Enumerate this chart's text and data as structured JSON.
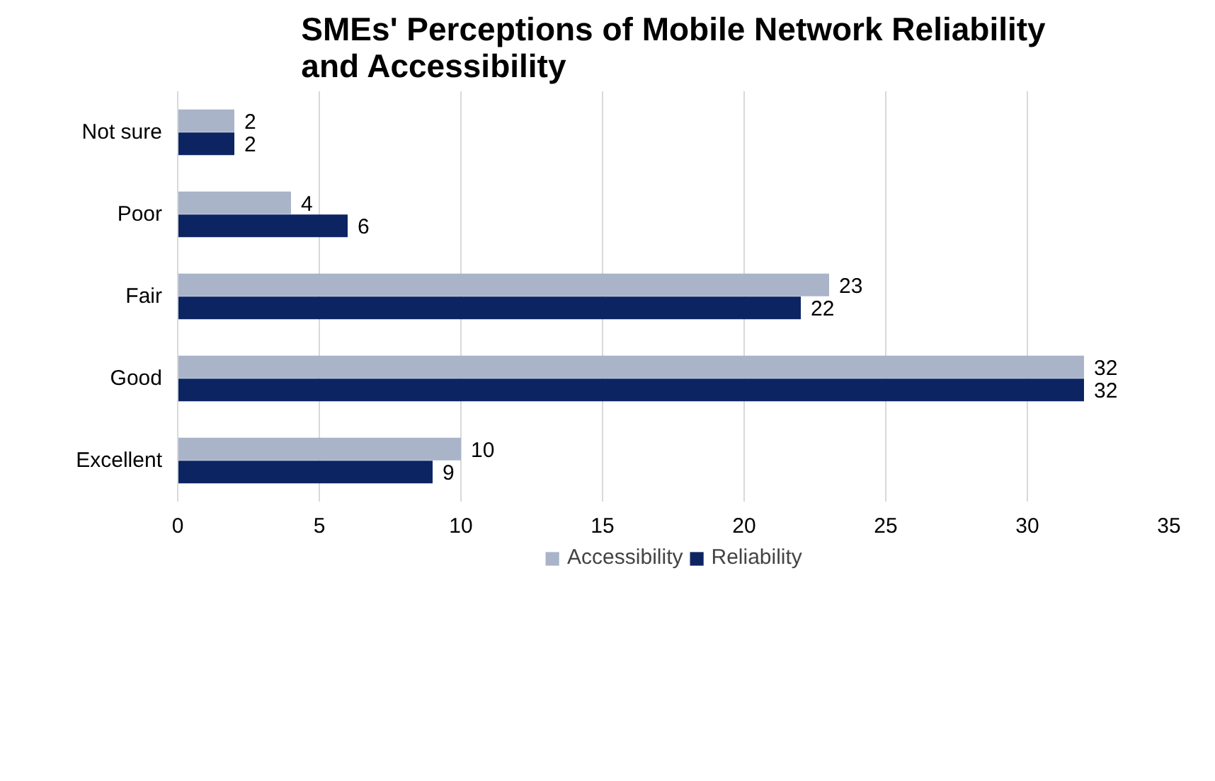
{
  "chart_data": {
    "type": "bar",
    "orientation": "horizontal",
    "title": "SMEs' Perceptions of Mobile Network Reliability and Accessibility",
    "categories": [
      "Not sure",
      "Poor",
      "Fair",
      "Good",
      "Excellent"
    ],
    "series": [
      {
        "name": "Accessibility",
        "color": "#a9b4c8",
        "values": [
          2,
          4,
          23,
          32,
          10
        ]
      },
      {
        "name": "Reliability",
        "color": "#0d2463",
        "values": [
          2,
          6,
          22,
          32,
          9
        ]
      }
    ],
    "xlim": [
      0,
      35
    ],
    "xticks": [
      0,
      5,
      10,
      15,
      20,
      25,
      30,
      35
    ],
    "grid": "x",
    "legend": "bottom",
    "data_labels": true
  }
}
